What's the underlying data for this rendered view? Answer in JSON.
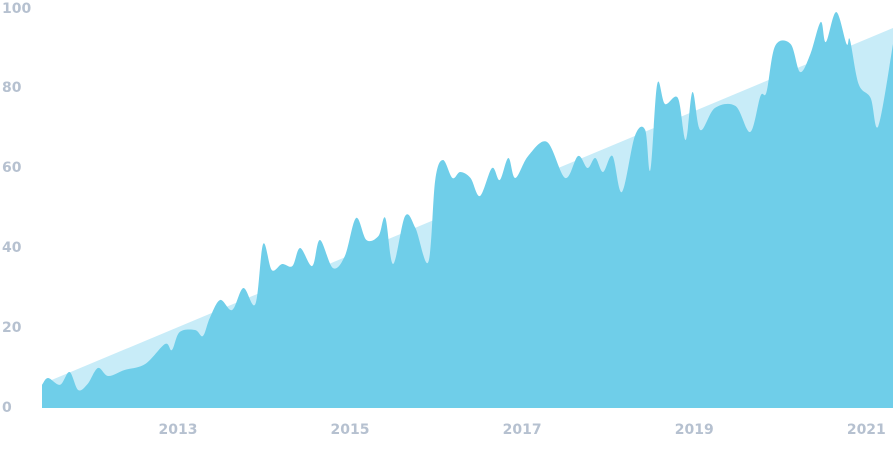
{
  "chart_data": {
    "type": "area",
    "xlim": [
      2011.42,
      2021.31
    ],
    "xticks": [
      2013,
      2015,
      2017,
      2019,
      2021
    ],
    "ylim": [
      0,
      100
    ],
    "yticks": [
      0,
      20,
      40,
      60,
      80,
      100
    ],
    "grid": false,
    "series": [
      {
        "color": "#c8ecf8",
        "x": [
          2011.42,
          2021.31
        ],
        "values": [
          6,
          95
        ]
      },
      {
        "color": "#6fcee9",
        "x": [
          2011.42,
          2011.49,
          2011.63,
          2011.74,
          2011.84,
          2011.95,
          2012.07,
          2012.19,
          2012.38,
          2012.62,
          2012.85,
          2012.93,
          2013.02,
          2013.2,
          2013.29,
          2013.37,
          2013.49,
          2013.63,
          2013.76,
          2013.9,
          2013.99,
          2014.09,
          2014.21,
          2014.33,
          2014.42,
          2014.56,
          2014.65,
          2014.8,
          2014.94,
          2015.07,
          2015.19,
          2015.33,
          2015.41,
          2015.5,
          2015.64,
          2015.76,
          2015.91,
          2015.99,
          2016.08,
          2016.19,
          2016.28,
          2016.4,
          2016.51,
          2016.65,
          2016.74,
          2016.84,
          2016.92,
          2017.07,
          2017.29,
          2017.5,
          2017.65,
          2017.76,
          2017.85,
          2017.94,
          2018.05,
          2018.16,
          2018.31,
          2018.43,
          2018.49,
          2018.57,
          2018.66,
          2018.81,
          2018.9,
          2018.98,
          2019.07,
          2019.24,
          2019.48,
          2019.65,
          2019.77,
          2019.84,
          2019.94,
          2020.12,
          2020.23,
          2020.35,
          2020.47,
          2020.53,
          2020.65,
          2020.77,
          2020.81,
          2020.91,
          2021.05,
          2021.14,
          2021.31
        ],
        "values": [
          5.75,
          7.5,
          5.8,
          9,
          4.5,
          6,
          10,
          8,
          9.5,
          11,
          16,
          14.5,
          19,
          19.5,
          18,
          22.5,
          27,
          24.5,
          30,
          26,
          41,
          34.5,
          36,
          35.5,
          40,
          35.5,
          42,
          35,
          38,
          47.5,
          42,
          43,
          47.5,
          36,
          48,
          45,
          36.5,
          57,
          62,
          57.5,
          59,
          57.5,
          53,
          60,
          57,
          62.5,
          57.5,
          63,
          66.5,
          57.5,
          63,
          60,
          62.5,
          59,
          63,
          54,
          68,
          69.5,
          59.5,
          81,
          76,
          77.5,
          67,
          79,
          69.5,
          75,
          75.5,
          69,
          78,
          79,
          90.5,
          91,
          84,
          88.5,
          96.5,
          91.5,
          99,
          91,
          92,
          81,
          77.5,
          70.5,
          91
        ]
      }
    ]
  }
}
